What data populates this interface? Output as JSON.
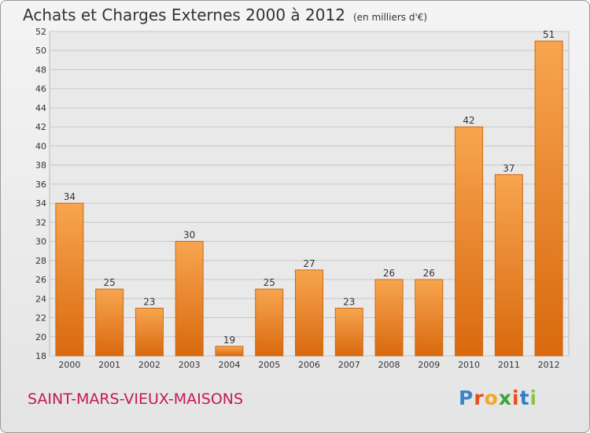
{
  "chart_data": {
    "type": "bar",
    "title": "Achats et Charges Externes 2000 à 2012",
    "unit_label": "(en milliers d'€)",
    "categories": [
      "2000",
      "2001",
      "2002",
      "2003",
      "2004",
      "2005",
      "2006",
      "2007",
      "2008",
      "2009",
      "2010",
      "2011",
      "2012"
    ],
    "values": [
      34,
      25,
      23,
      30,
      19,
      25,
      27,
      23,
      26,
      26,
      42,
      37,
      51
    ],
    "ylim": [
      18,
      52
    ],
    "yticks": [
      18,
      20,
      22,
      24,
      26,
      28,
      30,
      32,
      34,
      36,
      38,
      40,
      42,
      44,
      46,
      48,
      50,
      52
    ],
    "grid": true,
    "bar_color": "#f08a24"
  },
  "commune": "SAINT-MARS-VIEUX-MAISONS",
  "logo": {
    "letters": [
      "P",
      "r",
      "o",
      "x",
      "i",
      "t",
      "i"
    ],
    "colors": [
      "#3a86c8",
      "#e94c1f",
      "#f5a623",
      "#3aa63a",
      "#e94c1f",
      "#2f7fc1",
      "#8bc34a"
    ]
  }
}
